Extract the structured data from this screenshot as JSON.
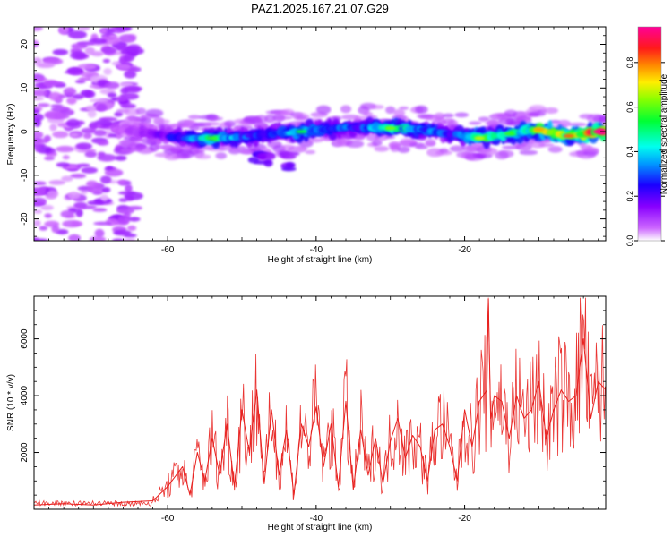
{
  "chart_data": [
    {
      "type": "heatmap",
      "title": "PAZ1.2025.167.21.07.G29",
      "xlabel": "Height of straight line (km)",
      "ylabel": "Frequency (Hz)",
      "xlim": [
        -78,
        -1
      ],
      "ylim": [
        -25,
        24
      ],
      "x_ticks": [
        -60,
        -40,
        -20
      ],
      "y_ticks": [
        -20,
        -10,
        0,
        10,
        20
      ],
      "colorbar": {
        "label": "Normalized spectral amplitude",
        "range": [
          0.0,
          0.96
        ],
        "ticks": [
          0.0,
          0.2,
          0.4,
          0.6,
          0.8
        ],
        "colormap": "rainbow (violet→blue→cyan→green→yellow→red→pink)"
      },
      "ridge": {
        "description": "Main signal ridge (peak frequency vs height)",
        "x": [
          -66,
          -62,
          -58,
          -54,
          -50,
          -46,
          -42,
          -38,
          -34,
          -30,
          -26,
          -22,
          -18,
          -14,
          -10,
          -6,
          -2
        ],
        "y": [
          0.5,
          -0.5,
          -1.5,
          -1.5,
          -1.2,
          -0.5,
          0.0,
          0.8,
          1.0,
          0.8,
          0.5,
          -0.5,
          -1.5,
          -0.5,
          0.5,
          -1.0,
          0.0
        ],
        "peak_amplitude": [
          0.1,
          0.15,
          0.3,
          0.5,
          0.35,
          0.3,
          0.45,
          0.35,
          0.3,
          0.55,
          0.4,
          0.3,
          0.6,
          0.5,
          0.7,
          0.75,
          0.9
        ]
      },
      "grid": false
    },
    {
      "type": "line",
      "xlabel": "Height of straight line (km)",
      "ylabel": "SNR (10 * v/v)",
      "xlim": [
        -78,
        -1
      ],
      "ylim": [
        0,
        7500
      ],
      "x_ticks": [
        -60,
        -40,
        -20
      ],
      "y_ticks": [
        2000,
        4000,
        6000
      ],
      "grid": false,
      "series": [
        {
          "color": "#e8201e",
          "x": [
            -78,
            -74,
            -70,
            -66,
            -62,
            -60,
            -58,
            -57,
            -56,
            -55,
            -54,
            -53,
            -52,
            -51,
            -50,
            -49,
            -48,
            -47,
            -46,
            -45,
            -44,
            -43,
            -42,
            -41,
            -40,
            -39,
            -38,
            -37,
            -36,
            -35,
            -34,
            -33,
            -32,
            -31,
            -30,
            -29,
            -28,
            -27,
            -26,
            -25,
            -24,
            -23,
            -22,
            -21,
            -20,
            -19,
            -18,
            -17,
            -16.8,
            -16.5,
            -16,
            -15,
            -14,
            -13,
            -12,
            -11,
            -10,
            -9,
            -8,
            -7,
            -6,
            -5,
            -4,
            -3,
            -2,
            -1
          ],
          "y": [
            150,
            200,
            150,
            250,
            300,
            800,
            1500,
            500,
            2000,
            1000,
            2500,
            1200,
            3000,
            800,
            3500,
            2000,
            4200,
            900,
            3500,
            1200,
            2800,
            500,
            3000,
            2200,
            3600,
            1500,
            3000,
            800,
            3800,
            700,
            2800,
            1200,
            2500,
            900,
            2400,
            3200,
            1800,
            2600,
            2200,
            1000,
            2800,
            3000,
            2200,
            1000,
            3500,
            2200,
            3800,
            4200,
            7400,
            3200,
            4000,
            3800,
            2500,
            4000,
            3200,
            3500,
            4500,
            2500,
            3500,
            4200,
            3800,
            4000,
            6000,
            3200,
            4500,
            4200
          ]
        }
      ]
    }
  ]
}
